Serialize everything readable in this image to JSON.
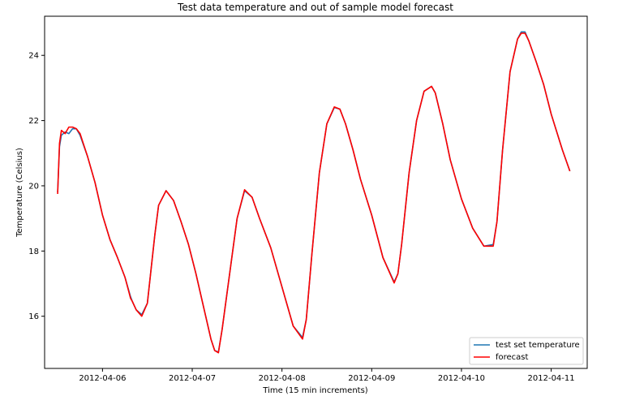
{
  "chart_data": {
    "type": "line",
    "title": "Test data temperature and out of sample model forecast",
    "xlabel": "Time (15 min increments)",
    "ylabel": "Temperature (Celsius)",
    "xlim": [
      "2012-04-05 08:31",
      "2012-04-11 09:38"
    ],
    "ylim": [
      14.4,
      25.2
    ],
    "xticks": [
      "2012-04-06",
      "2012-04-07",
      "2012-04-08",
      "2012-04-09",
      "2012-04-10",
      "2012-04-11"
    ],
    "yticks": [
      16,
      18,
      20,
      22,
      24
    ],
    "grid": false,
    "legend": "bottom-right",
    "colors": {
      "test set temperature": "#1f77b4",
      "forecast": "#ff0000"
    },
    "series": [
      {
        "name": "test set temperature",
        "x": [
          "2012-04-05 12:00",
          "2012-04-05 12:30",
          "2012-04-05 13:00",
          "2012-04-05 14:00",
          "2012-04-05 15:00",
          "2012-04-05 16:00",
          "2012-04-05 17:00",
          "2012-04-05 18:00",
          "2012-04-05 20:00",
          "2012-04-05 22:00",
          "2012-04-06 00:00",
          "2012-04-06 02:00",
          "2012-04-06 04:00",
          "2012-04-06 06:00",
          "2012-04-06 07:30",
          "2012-04-06 08:00",
          "2012-04-06 09:00",
          "2012-04-06 10:30",
          "2012-04-06 12:00",
          "2012-04-06 14:00",
          "2012-04-06 15:00",
          "2012-04-06 17:00",
          "2012-04-06 19:00",
          "2012-04-06 21:00",
          "2012-04-06 23:00",
          "2012-04-07 01:00",
          "2012-04-07 03:00",
          "2012-04-07 04:00",
          "2012-04-07 05:00",
          "2012-04-07 06:00",
          "2012-04-07 07:00",
          "2012-04-07 08:00",
          "2012-04-07 10:00",
          "2012-04-07 12:00",
          "2012-04-07 14:00",
          "2012-04-07 16:00",
          "2012-04-07 18:00",
          "2012-04-07 21:00",
          "2012-04-08 00:00",
          "2012-04-08 03:00",
          "2012-04-08 05:30",
          "2012-04-08 06:30",
          "2012-04-08 08:00",
          "2012-04-08 10:00",
          "2012-04-08 12:00",
          "2012-04-08 14:00",
          "2012-04-08 15:30",
          "2012-04-08 17:00",
          "2012-04-08 19:00",
          "2012-04-08 21:00",
          "2012-04-09 00:00",
          "2012-04-09 03:00",
          "2012-04-09 06:00",
          "2012-04-09 07:00",
          "2012-04-09 08:00",
          "2012-04-09 10:00",
          "2012-04-09 12:00",
          "2012-04-09 14:00",
          "2012-04-09 16:00",
          "2012-04-09 17:00",
          "2012-04-09 19:00",
          "2012-04-09 21:00",
          "2012-04-10 00:00",
          "2012-04-10 03:00",
          "2012-04-10 06:00",
          "2012-04-10 08:30",
          "2012-04-10 09:30",
          "2012-04-10 11:00",
          "2012-04-10 13:00",
          "2012-04-10 15:00",
          "2012-04-10 16:00",
          "2012-04-10 17:00",
          "2012-04-10 18:00",
          "2012-04-10 20:00",
          "2012-04-10 22:00",
          "2012-04-11 00:00",
          "2012-04-11 03:00",
          "2012-04-11 05:00"
        ],
        "y": [
          19.8,
          21.2,
          21.55,
          21.65,
          21.6,
          21.75,
          21.75,
          21.55,
          20.9,
          20.1,
          19.1,
          18.35,
          17.8,
          17.2,
          16.6,
          16.45,
          16.2,
          16.05,
          16.4,
          18.5,
          19.4,
          19.85,
          19.55,
          18.9,
          18.2,
          17.3,
          16.3,
          15.8,
          15.3,
          14.95,
          14.9,
          15.6,
          17.3,
          19.0,
          19.85,
          19.65,
          19.0,
          18.1,
          16.9,
          15.7,
          15.35,
          15.9,
          17.9,
          20.4,
          21.9,
          22.4,
          22.35,
          21.9,
          21.1,
          20.2,
          19.1,
          17.8,
          17.05,
          17.3,
          18.2,
          20.4,
          22.0,
          22.9,
          23.05,
          22.85,
          21.9,
          20.8,
          19.6,
          18.7,
          18.15,
          18.2,
          18.9,
          21.1,
          23.5,
          24.5,
          24.72,
          24.72,
          24.45,
          23.8,
          23.1,
          22.2,
          21.1,
          20.45
        ]
      },
      {
        "name": "forecast",
        "x": [
          "2012-04-05 12:00",
          "2012-04-05 12:30",
          "2012-04-05 13:00",
          "2012-04-05 14:00",
          "2012-04-05 15:00",
          "2012-04-05 16:00",
          "2012-04-05 17:00",
          "2012-04-05 18:00",
          "2012-04-05 20:00",
          "2012-04-05 22:00",
          "2012-04-06 00:00",
          "2012-04-06 02:00",
          "2012-04-06 04:00",
          "2012-04-06 06:00",
          "2012-04-06 07:30",
          "2012-04-06 08:00",
          "2012-04-06 09:00",
          "2012-04-06 10:30",
          "2012-04-06 12:00",
          "2012-04-06 14:00",
          "2012-04-06 15:00",
          "2012-04-06 17:00",
          "2012-04-06 19:00",
          "2012-04-06 21:00",
          "2012-04-06 23:00",
          "2012-04-07 01:00",
          "2012-04-07 03:00",
          "2012-04-07 04:00",
          "2012-04-07 05:00",
          "2012-04-07 06:00",
          "2012-04-07 07:00",
          "2012-04-07 08:00",
          "2012-04-07 10:00",
          "2012-04-07 12:00",
          "2012-04-07 14:00",
          "2012-04-07 16:00",
          "2012-04-07 18:00",
          "2012-04-07 21:00",
          "2012-04-08 00:00",
          "2012-04-08 03:00",
          "2012-04-08 05:30",
          "2012-04-08 06:30",
          "2012-04-08 08:00",
          "2012-04-08 10:00",
          "2012-04-08 12:00",
          "2012-04-08 14:00",
          "2012-04-08 15:30",
          "2012-04-08 17:00",
          "2012-04-08 19:00",
          "2012-04-08 21:00",
          "2012-04-09 00:00",
          "2012-04-09 03:00",
          "2012-04-09 06:00",
          "2012-04-09 07:00",
          "2012-04-09 08:00",
          "2012-04-09 10:00",
          "2012-04-09 12:00",
          "2012-04-09 14:00",
          "2012-04-09 16:00",
          "2012-04-09 17:00",
          "2012-04-09 19:00",
          "2012-04-09 21:00",
          "2012-04-10 00:00",
          "2012-04-10 03:00",
          "2012-04-10 06:00",
          "2012-04-10 08:30",
          "2012-04-10 09:30",
          "2012-04-10 11:00",
          "2012-04-10 13:00",
          "2012-04-10 15:00",
          "2012-04-10 16:00",
          "2012-04-10 17:00",
          "2012-04-10 18:00",
          "2012-04-10 20:00",
          "2012-04-10 22:00",
          "2012-04-11 00:00",
          "2012-04-11 03:00",
          "2012-04-11 05:00"
        ],
        "y": [
          19.75,
          21.3,
          21.7,
          21.6,
          21.8,
          21.8,
          21.75,
          21.6,
          20.9,
          20.1,
          19.1,
          18.35,
          17.8,
          17.2,
          16.55,
          16.45,
          16.2,
          16.0,
          16.4,
          18.5,
          19.4,
          19.85,
          19.55,
          18.9,
          18.2,
          17.3,
          16.3,
          15.8,
          15.3,
          14.95,
          14.88,
          15.6,
          17.3,
          19.0,
          19.88,
          19.65,
          19.0,
          18.1,
          16.9,
          15.7,
          15.3,
          15.9,
          17.9,
          20.4,
          21.9,
          22.42,
          22.35,
          21.9,
          21.1,
          20.2,
          19.1,
          17.8,
          17.02,
          17.3,
          18.2,
          20.4,
          22.0,
          22.9,
          23.05,
          22.85,
          21.9,
          20.8,
          19.6,
          18.7,
          18.15,
          18.15,
          18.9,
          21.1,
          23.5,
          24.5,
          24.68,
          24.68,
          24.45,
          23.8,
          23.1,
          22.2,
          21.1,
          20.45
        ]
      }
    ]
  }
}
